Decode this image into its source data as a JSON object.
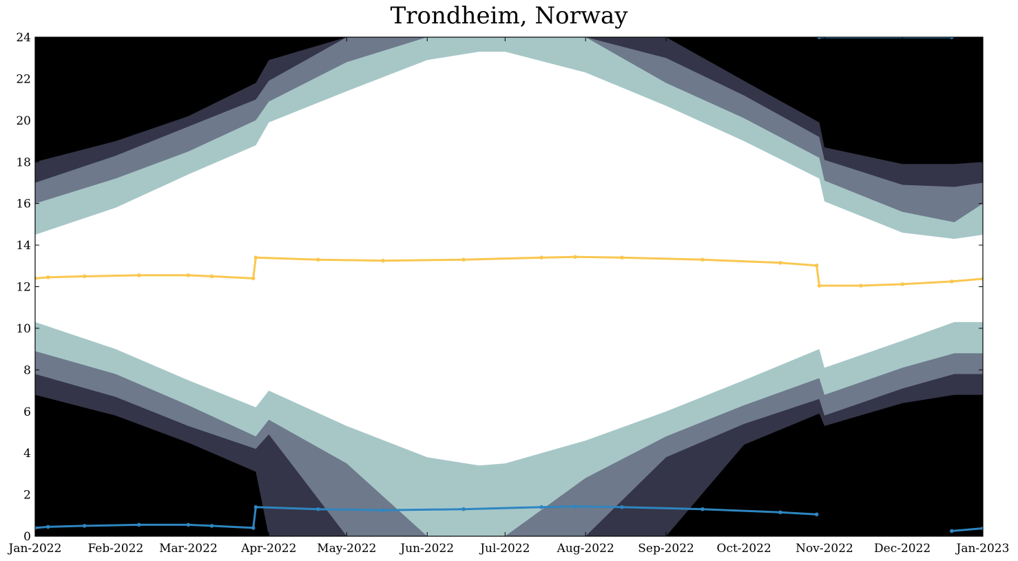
{
  "chart_data": {
    "type": "area",
    "title": "Trondheim, Norway",
    "xlabel": "",
    "ylabel": "",
    "xlim": [
      "2022-01-01",
      "2023-01-01"
    ],
    "ylim": [
      0,
      24
    ],
    "x_ticks": [
      "Jan-2022",
      "Feb-2022",
      "Mar-2022",
      "Apr-2022",
      "May-2022",
      "Jun-2022",
      "Jul-2022",
      "Aug-2022",
      "Sep-2022",
      "Oct-2022",
      "Nov-2022",
      "Dec-2022",
      "Jan-2023"
    ],
    "y_ticks": [
      0,
      2,
      4,
      6,
      8,
      10,
      12,
      14,
      16,
      18,
      20,
      22,
      24
    ],
    "grid": false,
    "colors": {
      "night": "#000000",
      "astronomical_twilight": "#343548",
      "nautical_twilight": "#6e798b",
      "civil_twilight": "#a7c7c7",
      "daylight": "#ffffff",
      "solar_noon": "#f9c74f",
      "solar_midnight": "#2e86c1"
    },
    "bands": {
      "dates": [
        "2022-01-01",
        "2022-02-01",
        "2022-03-01",
        "2022-03-27",
        "2022-04-01",
        "2022-05-01",
        "2022-06-01",
        "2022-06-21",
        "2022-07-01",
        "2022-08-01",
        "2022-09-01",
        "2022-10-01",
        "2022-10-30",
        "2022-11-01",
        "2022-12-01",
        "2022-12-21",
        "2023-01-01"
      ],
      "dawn_civil": [
        10.3,
        9.0,
        7.5,
        6.2,
        7.0,
        5.3,
        3.8,
        3.4,
        3.5,
        4.6,
        6.0,
        7.5,
        9.0,
        8.1,
        9.4,
        10.3,
        10.3
      ],
      "dawn_nautical": [
        8.9,
        7.8,
        6.3,
        4.8,
        5.6,
        3.5,
        0.0,
        0.0,
        0.0,
        2.8,
        4.8,
        6.3,
        7.6,
        6.8,
        8.1,
        8.8,
        8.8
      ],
      "dawn_astronomical": [
        7.8,
        6.7,
        5.3,
        4.2,
        4.9,
        0.0,
        0.0,
        0.0,
        0.0,
        0.0,
        3.8,
        5.4,
        6.6,
        5.8,
        7.1,
        7.8,
        7.8
      ],
      "dawn_night": [
        6.8,
        5.8,
        4.5,
        3.1,
        0.0,
        0.0,
        0.0,
        0.0,
        0.0,
        0.0,
        0.0,
        4.4,
        5.9,
        5.3,
        6.4,
        6.8,
        6.8
      ],
      "dusk_civil": [
        14.5,
        15.8,
        17.4,
        18.8,
        19.9,
        21.4,
        22.9,
        23.3,
        23.3,
        22.3,
        20.7,
        19.0,
        17.2,
        16.1,
        14.6,
        14.3,
        14.5
      ],
      "dusk_nautical": [
        16.0,
        17.2,
        18.5,
        20.0,
        20.9,
        22.8,
        24.0,
        24.0,
        24.0,
        24.0,
        21.8,
        20.1,
        18.2,
        17.1,
        15.6,
        15.1,
        16.0
      ],
      "dusk_astronomical": [
        17.0,
        18.3,
        19.7,
        21.0,
        21.9,
        24.0,
        24.0,
        24.0,
        24.0,
        24.0,
        23.0,
        21.2,
        19.2,
        18.1,
        16.9,
        16.8,
        17.0
      ],
      "dusk_night": [
        18.0,
        19.0,
        20.2,
        21.8,
        22.9,
        24.0,
        24.0,
        24.0,
        24.0,
        24.0,
        24.0,
        21.9,
        19.9,
        18.7,
        17.9,
        17.9,
        18.0
      ]
    },
    "series": [
      {
        "color": "#f9c74f",
        "x": [
          "2022-01-01",
          "2022-01-06",
          "2022-01-20",
          "2022-02-10",
          "2022-03-01",
          "2022-03-10",
          "2022-03-26",
          "2022-03-27",
          "2022-04-20",
          "2022-05-15",
          "2022-06-15",
          "2022-07-15",
          "2022-07-28",
          "2022-08-15",
          "2022-09-15",
          "2022-10-15",
          "2022-10-29",
          "2022-10-30",
          "2022-11-15",
          "2022-12-01",
          "2022-12-20",
          "2023-01-01"
        ],
        "y": [
          12.4,
          12.45,
          12.5,
          12.55,
          12.55,
          12.5,
          12.4,
          13.4,
          13.3,
          13.25,
          13.3,
          13.4,
          13.43,
          13.4,
          13.3,
          13.15,
          13.02,
          12.05,
          12.05,
          12.12,
          12.25,
          12.38
        ]
      },
      {
        "color": "#2e86c1",
        "x": [
          "2022-01-01",
          "2022-01-06",
          "2022-01-20",
          "2022-02-10",
          "2022-03-01",
          "2022-03-10",
          "2022-03-26",
          "2022-03-27",
          "2022-04-20",
          "2022-05-15",
          "2022-06-15",
          "2022-07-15",
          "2022-07-28",
          "2022-08-15",
          "2022-09-15",
          "2022-10-15",
          "2022-10-29",
          null,
          "2022-10-30",
          "2022-12-20",
          null,
          "2022-12-20",
          "2023-01-01"
        ],
        "y": [
          0.4,
          0.45,
          0.5,
          0.55,
          0.55,
          0.5,
          0.4,
          1.4,
          1.3,
          1.25,
          1.3,
          1.4,
          1.43,
          1.4,
          1.3,
          1.15,
          1.05,
          null,
          24.0,
          24.0,
          null,
          0.25,
          0.38
        ]
      }
    ]
  }
}
